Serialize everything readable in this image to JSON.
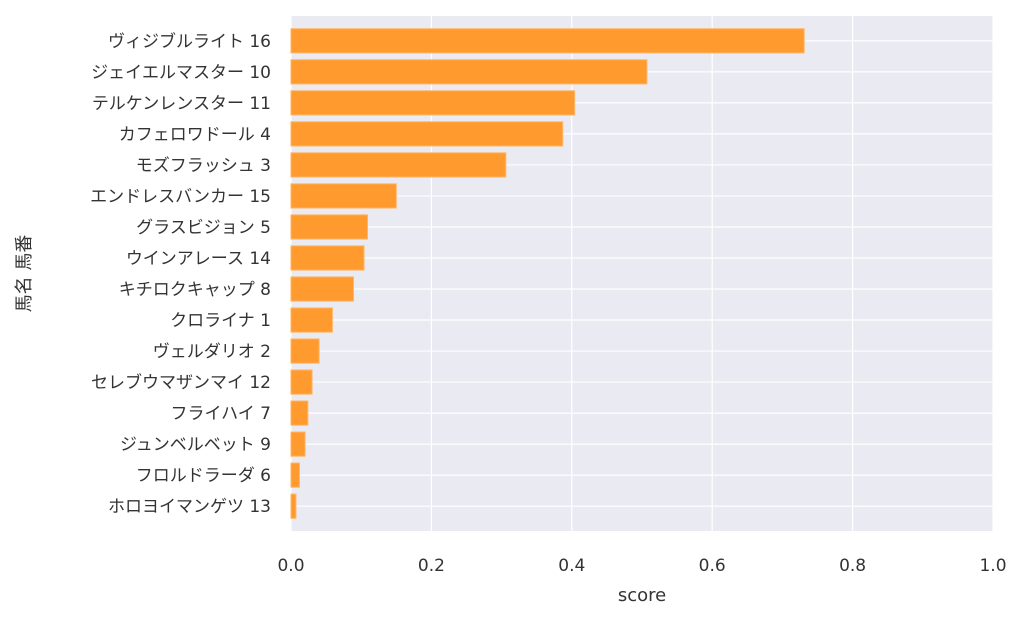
{
  "chart_data": {
    "type": "bar",
    "orientation": "horizontal",
    "categories": [
      "ヴィジブルライト 16",
      "ジェイエルマスター 10",
      "テルケンレンスター 11",
      "カフェロワドール 4",
      "モズフラッシュ 3",
      "エンドレスバンカー 15",
      "グラスビジョン 5",
      "ウインアレース 14",
      "キチロクキャップ 8",
      "クロライナ 1",
      "ヴェルダリオ 2",
      "セレブウマザンマイ 12",
      "フライハイ 7",
      "ジュンベルベット 9",
      "フロルドラーダ 6",
      "ホロヨイマンゲツ 13"
    ],
    "values": [
      0.731,
      0.507,
      0.404,
      0.387,
      0.306,
      0.15,
      0.109,
      0.104,
      0.089,
      0.059,
      0.04,
      0.03,
      0.024,
      0.02,
      0.012,
      0.007
    ],
    "xlabel": "score",
    "ylabel": "馬名 馬番",
    "xlim": [
      0,
      1
    ],
    "xticks": [
      0.0,
      0.2,
      0.4,
      0.6,
      0.8,
      1.0
    ],
    "xtick_labels": [
      "0.0",
      "0.2",
      "0.4",
      "0.6",
      "0.8",
      "1.0"
    ],
    "grid": true,
    "colors": {
      "bar": "#ff9a2e",
      "bar_edge": "#ffb566",
      "plot_background": "#eaeaf2",
      "grid": "#ffffff",
      "text": "#333333"
    }
  }
}
